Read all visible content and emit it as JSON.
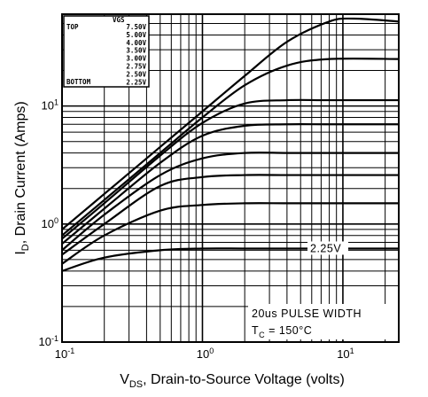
{
  "chart_data": {
    "type": "line",
    "x_scale": "log",
    "y_scale": "log",
    "xlim": [
      0.1,
      25
    ],
    "ylim": [
      0.1,
      60
    ],
    "xlabel_main": "V",
    "xlabel_sub": "DS",
    "xlabel_rest": ", Drain-to-Source Voltage (volts)",
    "ylabel_main": "I",
    "ylabel_sub": "D",
    "ylabel_rest": ", Drain Current (Amps)",
    "x_ticks": [
      {
        "value": 0.1,
        "base": "10",
        "exp": "-1"
      },
      {
        "value": 1,
        "base": "10",
        "exp": "0"
      },
      {
        "value": 10,
        "base": "10",
        "exp": "1"
      }
    ],
    "y_ticks": [
      {
        "value": 0.1,
        "base": "10",
        "exp": "-1"
      },
      {
        "value": 1,
        "base": "10",
        "exp": "0"
      },
      {
        "value": 10,
        "base": "10",
        "exp": "1"
      }
    ],
    "grid": true,
    "legend": {
      "placement": "top-left",
      "header": "VGS",
      "top_label": "TOP",
      "bottom_label": "BOTTOM",
      "entries": [
        "7.50V",
        "5.00V",
        "4.00V",
        "3.50V",
        "3.00V",
        "2.75V",
        "2.50V",
        "2.25V"
      ]
    },
    "annotations": {
      "curve_label": "2.25V",
      "pulse_text": "20us PULSE WIDTH",
      "tc_main": "T",
      "tc_sub": "C",
      "tc_rest": " = 150°C"
    },
    "series": [
      {
        "name": "7.50V",
        "x": [
          0.1,
          0.2,
          0.5,
          1,
          2,
          4,
          8,
          12,
          25
        ],
        "y": [
          0.9,
          1.8,
          4.5,
          9,
          18,
          35,
          52,
          55,
          52
        ]
      },
      {
        "name": "5.00V",
        "x": [
          0.1,
          0.2,
          0.5,
          1,
          2,
          4,
          8,
          25
        ],
        "y": [
          0.8,
          1.6,
          4.0,
          8.0,
          15,
          22,
          25,
          25
        ]
      },
      {
        "name": "4.00V",
        "x": [
          0.1,
          0.2,
          0.5,
          1,
          2,
          4,
          8,
          25
        ],
        "y": [
          0.75,
          1.5,
          3.8,
          7.2,
          10.5,
          11.2,
          11.2,
          11.2
        ]
      },
      {
        "name": "3.50V",
        "x": [
          0.1,
          0.2,
          0.5,
          1,
          2,
          4,
          8,
          25
        ],
        "y": [
          0.68,
          1.35,
          3.3,
          5.6,
          6.8,
          7.0,
          7.0,
          7.0
        ]
      },
      {
        "name": "3.00V",
        "x": [
          0.1,
          0.2,
          0.5,
          1,
          2,
          4,
          8,
          25
        ],
        "y": [
          0.6,
          1.2,
          2.6,
          3.6,
          4.0,
          4.0,
          4.0,
          4.0
        ]
      },
      {
        "name": "2.75V",
        "x": [
          0.1,
          0.2,
          0.5,
          1,
          2,
          4,
          8,
          25
        ],
        "y": [
          0.55,
          1.0,
          2.1,
          2.5,
          2.6,
          2.6,
          2.6,
          2.6
        ]
      },
      {
        "name": "2.50V",
        "x": [
          0.1,
          0.2,
          0.5,
          1,
          2,
          4,
          8,
          25
        ],
        "y": [
          0.46,
          0.8,
          1.3,
          1.45,
          1.5,
          1.5,
          1.5,
          1.5
        ]
      },
      {
        "name": "2.25V",
        "x": [
          0.1,
          0.2,
          0.5,
          1,
          2,
          4,
          8,
          25
        ],
        "y": [
          0.4,
          0.52,
          0.6,
          0.62,
          0.62,
          0.62,
          0.62,
          0.62
        ]
      }
    ]
  }
}
